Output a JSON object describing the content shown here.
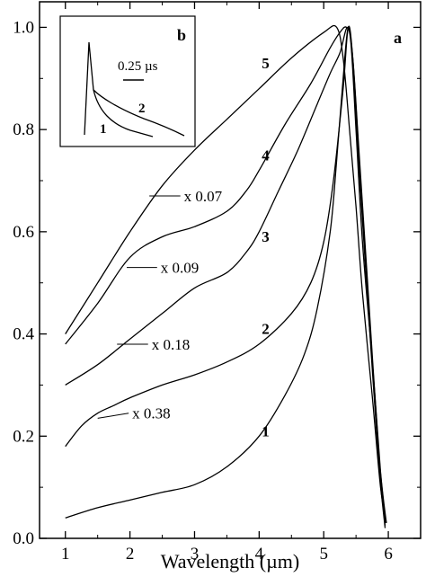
{
  "chart_data": {
    "type": "line",
    "panel_label": "a",
    "xlabel": "Wavelength  (µm)",
    "ylabel": "",
    "xlim": [
      0.6,
      6.5
    ],
    "ylim": [
      0.0,
      1.05
    ],
    "x_ticks": [
      1,
      2,
      3,
      4,
      5,
      6
    ],
    "x_tick_labels": [
      "1",
      "2",
      "3",
      "4",
      "5",
      "6"
    ],
    "y_ticks": [
      0.0,
      0.2,
      0.4,
      0.6,
      0.8,
      1.0
    ],
    "y_tick_labels": [
      "0.0",
      "0.2",
      "0.4",
      "0.6",
      "0.8",
      "1.0"
    ],
    "grid": false,
    "series": [
      {
        "name": "1",
        "x": [
          1.0,
          1.5,
          2.0,
          2.5,
          3.0,
          3.5,
          4.0,
          4.4,
          4.7,
          4.9,
          5.1,
          5.2,
          5.3,
          5.38,
          5.45,
          5.55,
          5.7,
          5.85,
          5.95
        ],
        "y": [
          0.04,
          0.06,
          0.075,
          0.09,
          0.105,
          0.14,
          0.2,
          0.28,
          0.36,
          0.45,
          0.6,
          0.74,
          0.9,
          1.0,
          0.93,
          0.72,
          0.43,
          0.15,
          0.02
        ]
      },
      {
        "name": "2",
        "x": [
          1.0,
          1.25,
          1.5,
          1.75,
          2.0,
          2.5,
          3.0,
          3.5,
          4.0,
          4.5,
          4.8,
          5.0,
          5.15,
          5.3,
          5.38,
          5.45,
          5.55,
          5.7,
          5.85,
          5.95
        ],
        "y": [
          0.18,
          0.22,
          0.245,
          0.26,
          0.275,
          0.3,
          0.32,
          0.345,
          0.38,
          0.44,
          0.5,
          0.58,
          0.7,
          0.88,
          1.0,
          0.94,
          0.74,
          0.45,
          0.16,
          0.025
        ]
      },
      {
        "name": "3",
        "x": [
          1.0,
          1.5,
          2.0,
          2.5,
          3.0,
          3.5,
          3.8,
          4.0,
          4.3,
          4.6,
          4.9,
          5.1,
          5.25,
          5.37,
          5.45,
          5.55,
          5.7,
          5.85,
          5.96
        ],
        "y": [
          0.3,
          0.34,
          0.39,
          0.44,
          0.49,
          0.52,
          0.56,
          0.6,
          0.68,
          0.76,
          0.85,
          0.91,
          0.95,
          1.0,
          0.94,
          0.75,
          0.46,
          0.17,
          0.03
        ]
      },
      {
        "name": "4",
        "x": [
          1.0,
          1.5,
          2.0,
          2.5,
          3.0,
          3.5,
          3.8,
          4.0,
          4.4,
          4.8,
          5.1,
          5.25,
          5.35,
          5.42,
          5.5,
          5.6,
          5.75,
          5.88,
          5.97
        ],
        "y": [
          0.38,
          0.46,
          0.55,
          0.59,
          0.61,
          0.64,
          0.68,
          0.72,
          0.81,
          0.89,
          0.96,
          0.99,
          1.0,
          0.97,
          0.8,
          0.58,
          0.35,
          0.13,
          0.03
        ]
      },
      {
        "name": "5",
        "x": [
          1.0,
          1.5,
          2.0,
          2.5,
          3.0,
          3.5,
          4.0,
          4.5,
          5.0,
          5.2,
          5.3,
          5.4,
          5.5,
          5.6,
          5.75,
          5.88,
          5.97
        ],
        "y": [
          0.4,
          0.5,
          0.6,
          0.69,
          0.76,
          0.82,
          0.88,
          0.94,
          0.99,
          1.0,
          0.94,
          0.8,
          0.65,
          0.48,
          0.28,
          0.1,
          0.03
        ]
      }
    ],
    "curve_labels": [
      {
        "text": "1",
        "x": 4.1,
        "y": 0.2
      },
      {
        "text": "2",
        "x": 4.1,
        "y": 0.4
      },
      {
        "text": "3",
        "x": 4.1,
        "y": 0.58
      },
      {
        "text": "4",
        "x": 4.1,
        "y": 0.74
      },
      {
        "text": "5",
        "x": 4.1,
        "y": 0.92
      }
    ],
    "annotations": [
      {
        "text": "x 0.38",
        "x_start": 1.5,
        "y_start": 0.235,
        "x_end": 1.98,
        "y_end": 0.245
      },
      {
        "text": "x 0.18",
        "x_start": 1.8,
        "y_start": 0.38,
        "x_end": 2.28,
        "y_end": 0.38
      },
      {
        "text": "x 0.09",
        "x_start": 1.95,
        "y_start": 0.53,
        "x_end": 2.42,
        "y_end": 0.53
      },
      {
        "text": "x 0.07",
        "x_start": 2.3,
        "y_start": 0.67,
        "x_end": 2.78,
        "y_end": 0.67
      }
    ],
    "inset": {
      "panel_label": "b",
      "scale_bar_label": "0.25 µs",
      "series": [
        {
          "name": "1",
          "label": "1"
        },
        {
          "name": "2",
          "label": "2"
        }
      ]
    }
  }
}
